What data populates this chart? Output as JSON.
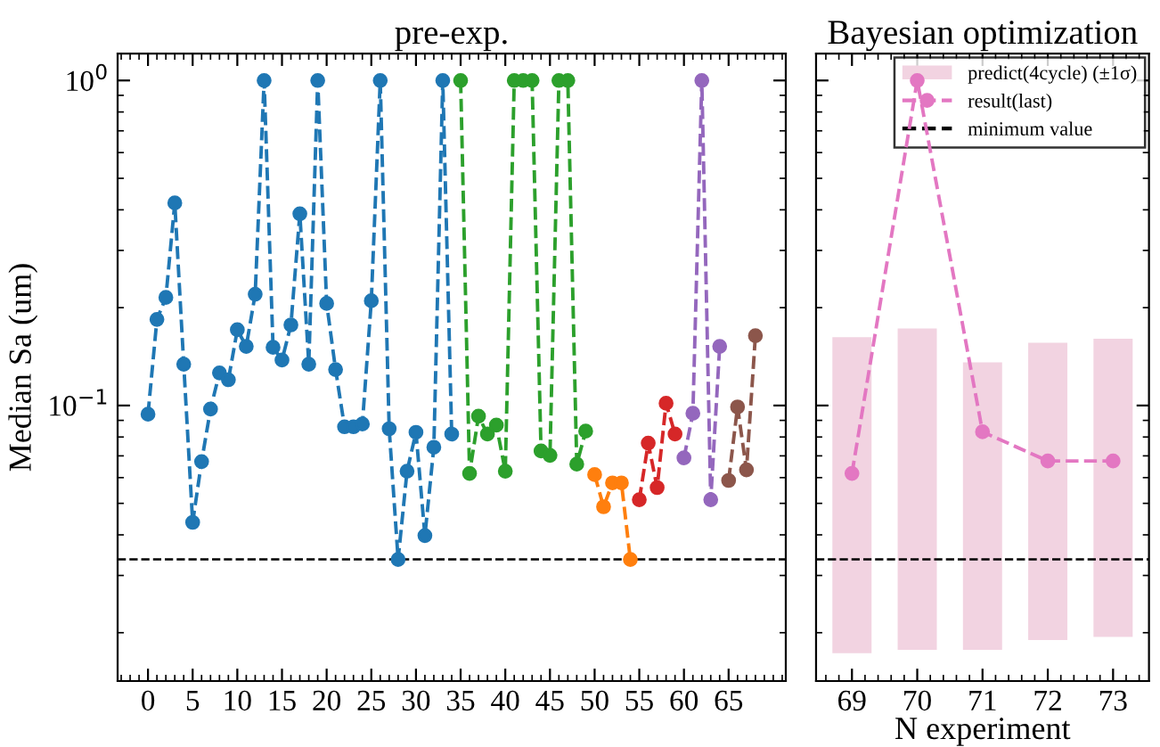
{
  "chart_data": [
    {
      "type": "line",
      "title": "pre-exp.",
      "ylabel": "Median Sa (um)",
      "log": "y",
      "xlim": [
        -3.4,
        71.4
      ],
      "xticks": [
        0,
        5,
        10,
        15,
        20,
        25,
        30,
        35,
        40,
        45,
        50,
        55,
        60,
        65
      ],
      "ylim": [
        0.0142,
        1.21
      ],
      "yticks": [
        {
          "value": 1,
          "label": "10$^{0}$"
        },
        {
          "value": 0.1,
          "label": "10$^{−1}$"
        }
      ],
      "marker": "circle",
      "line_style": "dashed",
      "series": [
        {
          "color": "#1f77b4",
          "x": [
            0,
            1,
            2,
            3,
            4,
            5,
            6,
            7,
            8,
            9,
            10,
            11,
            12,
            13,
            14,
            15,
            16,
            17,
            18,
            19,
            20,
            21,
            22,
            23,
            24,
            25,
            26,
            27,
            28,
            29,
            30,
            31,
            32,
            33,
            34
          ],
          "values": [
            0.094,
            0.184,
            0.215,
            0.42,
            0.134,
            0.0437,
            0.0672,
            0.0975,
            0.126,
            0.12,
            0.171,
            0.152,
            0.22,
            1.0,
            0.151,
            0.138,
            0.177,
            0.389,
            0.134,
            1.0,
            0.206,
            0.129,
            0.086,
            0.086,
            0.0877,
            0.21,
            1.0,
            0.0848,
            0.0336,
            0.0628,
            0.0827,
            0.0398,
            0.0744,
            1.0,
            0.0817
          ]
        },
        {
          "color": "#2ca02c",
          "x": [
            35,
            36,
            37,
            38,
            39,
            40,
            41,
            42,
            43,
            44,
            45,
            46,
            47,
            48,
            49
          ],
          "values": [
            1.0,
            0.0618,
            0.0927,
            0.0817,
            0.087,
            0.0628,
            1.0,
            1.0,
            1.0,
            0.0725,
            0.0702,
            1.0,
            1.0,
            0.066,
            0.0834
          ]
        },
        {
          "color": "#ff7f0e",
          "x": [
            50,
            51,
            52,
            53,
            54
          ],
          "values": [
            0.0613,
            0.0488,
            0.0578,
            0.0578,
            0.0336
          ]
        },
        {
          "color": "#d62728",
          "x": [
            55,
            56,
            57,
            58,
            59
          ],
          "values": [
            0.0513,
            0.0766,
            0.0559,
            0.1016,
            0.0817
          ]
        },
        {
          "color": "#9467bd",
          "x": [
            60,
            61,
            62,
            63,
            64
          ],
          "values": [
            0.069,
            0.0946,
            1.0,
            0.0513,
            0.152
          ]
        },
        {
          "color": "#8c564b",
          "x": [
            65,
            66,
            67,
            68
          ],
          "values": [
            0.0588,
            0.099,
            0.0634,
            0.164
          ]
        }
      ],
      "ref_lines": [
        {
          "axis": "y",
          "value": 0.0336,
          "color": "#000000",
          "line_style": "dashed"
        }
      ]
    },
    {
      "type": "bar",
      "title": "Bayesian optimization",
      "xlabel": "N experiment",
      "log": "y",
      "xlim": [
        68.45,
        73.55
      ],
      "xticks": [
        69,
        70,
        71,
        72,
        73
      ],
      "ylim": [
        0.0142,
        1.21
      ],
      "yticks": [
        1,
        0.1
      ],
      "tick_labels": "x",
      "legend": "top right",
      "series": [
        {
          "name": "predict(4cycle) (±1σ)",
          "type": "bar",
          "color": "#f2d3e1",
          "x": [
            69,
            70,
            71,
            72,
            73
          ],
          "values": [
            0.145,
            0.155,
            0.118,
            0.137,
            0.141
          ],
          "base": [
            0.0173,
            0.0177,
            0.0177,
            0.019,
            0.0194
          ]
        },
        {
          "name": "result(last)",
          "type": "line",
          "color": "#e377c2",
          "marker": "circle",
          "line_style": "dashed",
          "x": [
            69,
            70,
            71,
            72,
            73
          ],
          "values": [
            0.0618,
            1.0,
            0.083,
            0.0675,
            0.0675
          ]
        }
      ],
      "ref_lines": [
        {
          "axis": "y",
          "value": 0.0336,
          "label": "minimum value",
          "color": "#000000",
          "line_style": "dashed"
        }
      ]
    }
  ]
}
